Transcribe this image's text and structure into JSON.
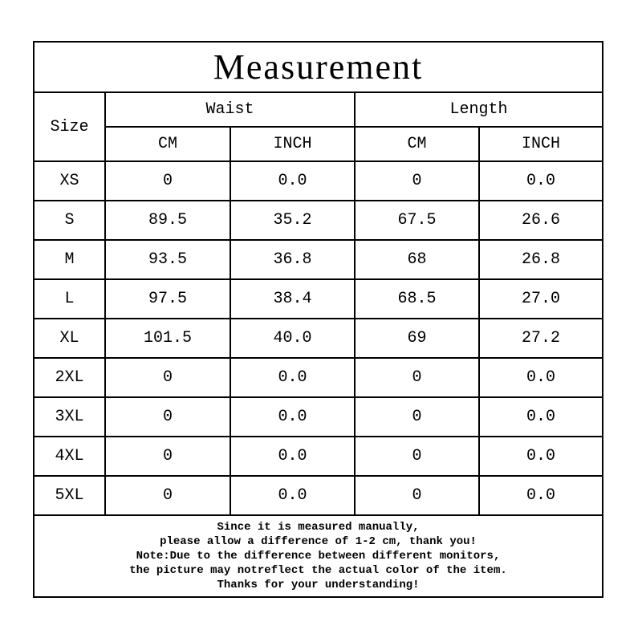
{
  "title": "Measurement",
  "header": {
    "size": "Size",
    "groups": [
      "Waist",
      "Length"
    ],
    "units": [
      "CM",
      "INCH",
      "CM",
      "INCH"
    ]
  },
  "table": {
    "rows": [
      [
        "XS",
        "0",
        "0.0",
        "0",
        "0.0"
      ],
      [
        "S",
        "89.5",
        "35.2",
        "67.5",
        "26.6"
      ],
      [
        "M",
        "93.5",
        "36.8",
        "68",
        "26.8"
      ],
      [
        "L",
        "97.5",
        "38.4",
        "68.5",
        "27.0"
      ],
      [
        "XL",
        "101.5",
        "40.0",
        "69",
        "27.2"
      ],
      [
        "2XL",
        "0",
        "0.0",
        "0",
        "0.0"
      ],
      [
        "3XL",
        "0",
        "0.0",
        "0",
        "0.0"
      ],
      [
        "4XL",
        "0",
        "0.0",
        "0",
        "0.0"
      ],
      [
        "5XL",
        "0",
        "0.0",
        "0",
        "0.0"
      ]
    ]
  },
  "notes": [
    "Since it is measured manually,",
    "please allow a difference of 1-2 cm, thank you!",
    "Note:Due to the difference between different monitors,",
    "the picture may notreflect the actual color of the item.",
    "Thanks for your understanding!"
  ]
}
